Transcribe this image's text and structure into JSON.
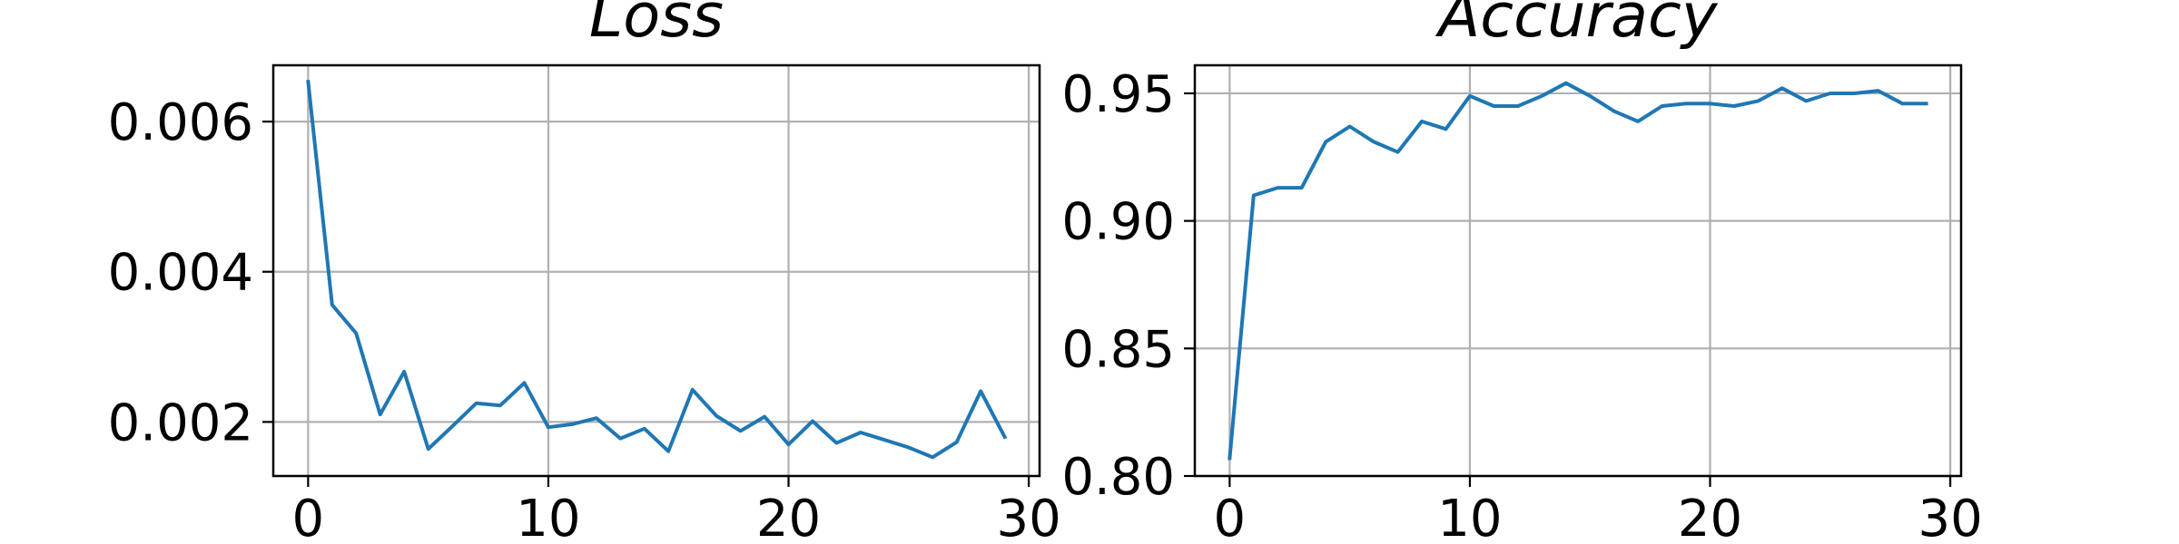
{
  "chart_data": [
    {
      "type": "line",
      "title": "Loss",
      "xlabel": "",
      "ylabel": "",
      "xlim": [
        -1.45,
        30.45
      ],
      "ylim": [
        0.00128,
        0.00675
      ],
      "xticks": [
        0,
        10,
        20,
        30
      ],
      "xtick_labels": [
        "0",
        "10",
        "20",
        "30"
      ],
      "yticks": [
        0.002,
        0.004,
        0.006
      ],
      "ytick_labels": [
        "0.002",
        "0.004",
        "0.006"
      ],
      "grid": true,
      "line_color": "#1f77b4",
      "x": [
        0,
        1,
        2,
        3,
        4,
        5,
        6,
        7,
        8,
        9,
        10,
        11,
        12,
        13,
        14,
        15,
        16,
        17,
        18,
        19,
        20,
        21,
        22,
        23,
        24,
        25,
        26,
        27,
        28,
        29
      ],
      "series": [
        {
          "values": [
            0.00653,
            0.00356,
            0.00318,
            0.0021,
            0.00267,
            0.00164,
            0.00194,
            0.00225,
            0.00222,
            0.00252,
            0.00193,
            0.00197,
            0.00205,
            0.00178,
            0.00191,
            0.00161,
            0.00243,
            0.00208,
            0.00188,
            0.00207,
            0.0017,
            0.00201,
            0.00172,
            0.00186,
            0.00176,
            0.00166,
            0.00153,
            0.00173,
            0.00241,
            0.0018
          ]
        }
      ]
    },
    {
      "type": "line",
      "title": "Accuracy",
      "xlabel": "",
      "ylabel": "",
      "xlim": [
        -1.45,
        30.45
      ],
      "ylim": [
        0.8,
        0.961
      ],
      "xticks": [
        0,
        10,
        20,
        30
      ],
      "xtick_labels": [
        "0",
        "10",
        "20",
        "30"
      ],
      "yticks": [
        0.8,
        0.85,
        0.9,
        0.95
      ],
      "ytick_labels": [
        "0.80",
        "0.85",
        "0.90",
        "0.95"
      ],
      "grid": true,
      "line_color": "#1f77b4",
      "x": [
        0,
        1,
        2,
        3,
        4,
        5,
        6,
        7,
        8,
        9,
        10,
        11,
        12,
        13,
        14,
        15,
        16,
        17,
        18,
        19,
        20,
        21,
        22,
        23,
        24,
        25,
        26,
        27,
        28,
        29
      ],
      "series": [
        {
          "values": [
            0.807,
            0.91,
            0.913,
            0.913,
            0.931,
            0.937,
            0.931,
            0.927,
            0.939,
            0.936,
            0.949,
            0.945,
            0.945,
            0.949,
            0.954,
            0.949,
            0.943,
            0.939,
            0.945,
            0.946,
            0.946,
            0.945,
            0.947,
            0.952,
            0.947,
            0.95,
            0.95,
            0.951,
            0.946,
            0.946
          ]
        }
      ]
    }
  ]
}
